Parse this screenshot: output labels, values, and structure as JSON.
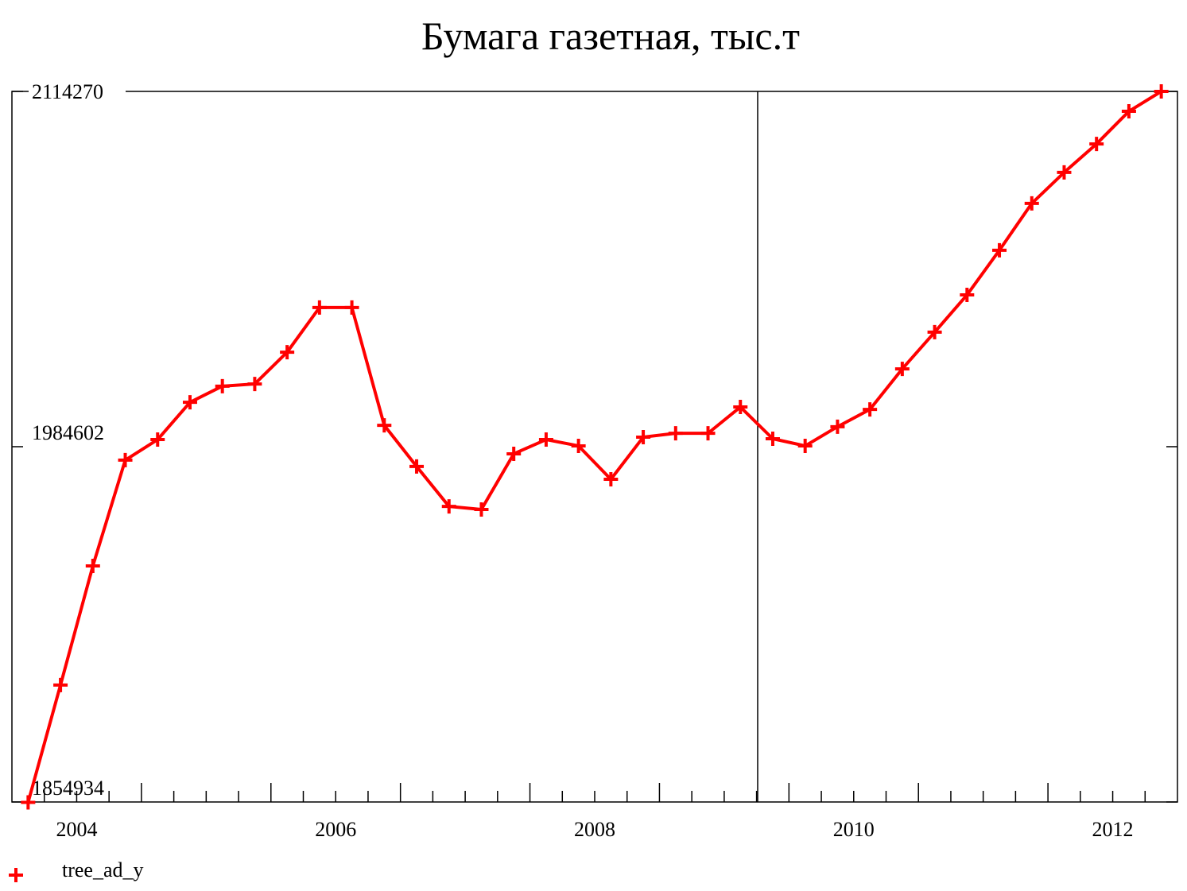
{
  "chart_data": {
    "type": "line",
    "title": "Бумага газетная, тыс.т",
    "x": [
      2004.125,
      2004.375,
      2004.625,
      2004.875,
      2005.125,
      2005.375,
      2005.625,
      2005.875,
      2006.125,
      2006.375,
      2006.625,
      2006.875,
      2007.125,
      2007.375,
      2007.625,
      2007.875,
      2008.125,
      2008.375,
      2008.625,
      2008.875,
      2009.125,
      2009.375,
      2009.625,
      2009.875,
      2010.125,
      2010.375,
      2010.625,
      2010.875,
      2011.125,
      2011.375,
      2011.625,
      2011.875,
      2012.125,
      2012.375,
      2012.625,
      2012.875
    ],
    "series": [
      {
        "name": "tree_ad_y",
        "color": "#ff0000",
        "values": [
          1854800,
          1897600,
          1941100,
          1979700,
          1987200,
          2000800,
          2006700,
          2007500,
          2019100,
          2035400,
          2035400,
          1992400,
          1977400,
          1962800,
          1961700,
          1982000,
          1987200,
          1984900,
          1972700,
          1988100,
          1989500,
          1989500,
          1999100,
          1987500,
          1984900,
          1991900,
          1998200,
          2013000,
          2026400,
          2040000,
          2056300,
          2073400,
          2084700,
          2095100,
          2107000,
          2114270
        ]
      }
    ],
    "xlim": [
      2004,
      2013
    ],
    "xticks": [
      2004,
      2006,
      2008,
      2010,
      2012
    ],
    "ylim": [
      1854934,
      2114270
    ],
    "yticks": [
      1854934,
      1984602,
      2114270
    ],
    "grid": false,
    "legend": "bottom-left"
  }
}
